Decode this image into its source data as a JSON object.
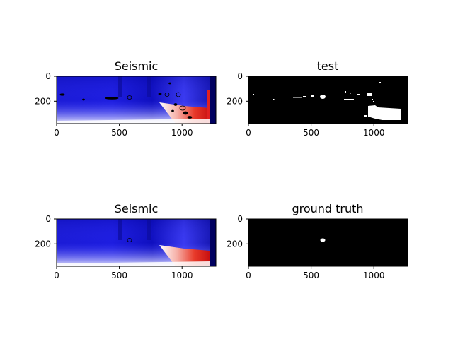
{
  "chart_data": [
    {
      "type": "heatmap",
      "title": "Seismic",
      "image": "seismic-with-contours",
      "colormap": "seismic",
      "xlim": [
        0,
        1270
      ],
      "ylim": [
        380,
        0
      ],
      "xticks": [
        0,
        500,
        1000
      ],
      "yticks": [
        0,
        200
      ]
    },
    {
      "type": "heatmap",
      "title": "test",
      "image": "binary-mask-test",
      "colormap": "gray",
      "xlim": [
        0,
        1270
      ],
      "ylim": [
        380,
        0
      ],
      "xticks": [
        0,
        500,
        1000
      ],
      "yticks": [
        0,
        200
      ]
    },
    {
      "type": "heatmap",
      "title": "Seismic",
      "image": "seismic-plain",
      "colormap": "seismic",
      "xlim": [
        0,
        1270
      ],
      "ylim": [
        380,
        0
      ],
      "xticks": [
        0,
        500,
        1000
      ],
      "yticks": [
        0,
        200
      ]
    },
    {
      "type": "heatmap",
      "title": "ground truth",
      "image": "binary-mask-ground-truth",
      "colormap": "gray",
      "xlim": [
        0,
        1270
      ],
      "ylim": [
        380,
        0
      ],
      "xticks": [
        0,
        500,
        1000
      ],
      "yticks": [
        0,
        200
      ]
    }
  ]
}
